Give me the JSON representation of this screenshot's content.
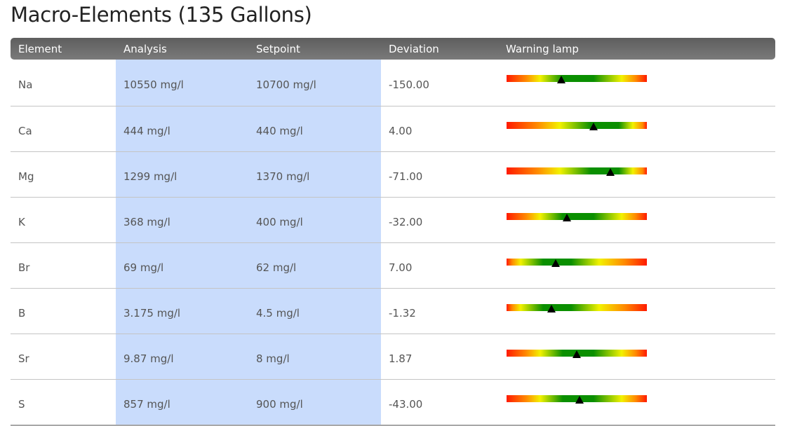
{
  "page": {
    "title": "Macro-Elements (135 Gallons)"
  },
  "table": {
    "headers": {
      "element": "Element",
      "analysis": "Analysis",
      "setpoint": "Setpoint",
      "deviation": "Deviation",
      "warning_lamp": "Warning lamp"
    },
    "rows": [
      {
        "element": "Na",
        "analysis": "10550 mg/l",
        "setpoint": "10700 mg/l",
        "deviation": "-150.00",
        "lamp_level": 0.39,
        "lamp_profile": "centered"
      },
      {
        "element": "Ca",
        "analysis": "444 mg/l",
        "setpoint": "440 mg/l",
        "deviation": "4.00",
        "lamp_level": 0.62,
        "lamp_profile": "right-leaning"
      },
      {
        "element": "Mg",
        "analysis": "1299 mg/l",
        "setpoint": "1370 mg/l",
        "deviation": "-71.00",
        "lamp_level": 0.74,
        "lamp_profile": "right-leaning"
      },
      {
        "element": "K",
        "analysis": "368 mg/l",
        "setpoint": "400 mg/l",
        "deviation": "-32.00",
        "lamp_level": 0.43,
        "lamp_profile": "centered"
      },
      {
        "element": "Br",
        "analysis": "69 mg/l",
        "setpoint": "62 mg/l",
        "deviation": "7.00",
        "lamp_level": 0.35,
        "lamp_profile": "left-leaning"
      },
      {
        "element": "B",
        "analysis": "3.175 mg/l",
        "setpoint": "4.5 mg/l",
        "deviation": "-1.32",
        "lamp_level": 0.32,
        "lamp_profile": "left-leaning"
      },
      {
        "element": "Sr",
        "analysis": "9.87 mg/l",
        "setpoint": "8 mg/l",
        "deviation": "1.87",
        "lamp_level": 0.5,
        "lamp_profile": "centered"
      },
      {
        "element": "S",
        "analysis": "857 mg/l",
        "setpoint": "900 mg/l",
        "deviation": "-43.00",
        "lamp_level": 0.52,
        "lamp_profile": "centered"
      }
    ]
  },
  "colors": {
    "header_bg": "#6e6e6e",
    "highlight": "#c9dcfc",
    "lamp_red": "#ff1a00",
    "lamp_orange": "#ff8a00",
    "lamp_yellow": "#f2f200",
    "lamp_green": "#0a8f00",
    "marker": "#000000"
  }
}
